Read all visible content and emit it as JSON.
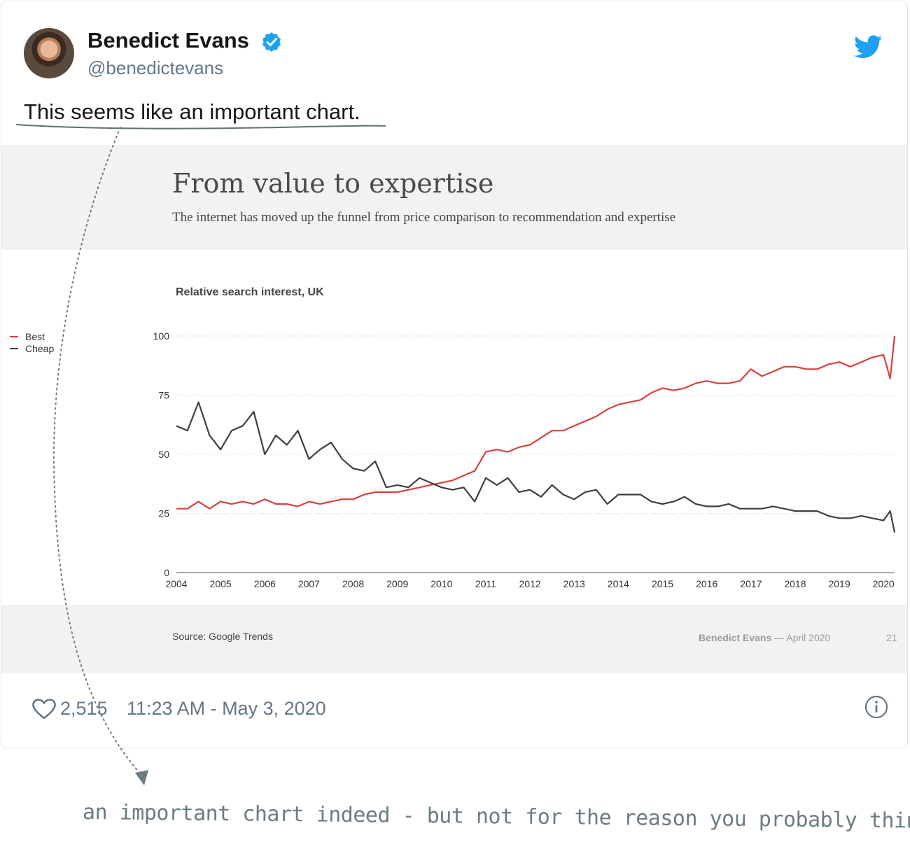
{
  "tweet": {
    "author_name": "Benedict Evans",
    "handle": "@benedictevans",
    "text": "This seems like an important chart.",
    "likes": "2,515",
    "timestamp": "11:23 AM - May 3, 2020",
    "icons": [
      "verified-icon",
      "twitter-bird-icon",
      "heart-icon",
      "info-icon"
    ],
    "colors": {
      "verified": "#1da1f2",
      "bird": "#1da1f2"
    }
  },
  "slide": {
    "title": "From value to expertise",
    "subtitle": "The internet has moved up the funnel from price comparison to recommendation and expertise",
    "source": "Source: Google Trends",
    "brand": "Benedict Evans",
    "separator": "—",
    "date": "April 2020",
    "page": "21"
  },
  "chart_data": {
    "type": "line",
    "title": "Relative search interest, UK",
    "xlabel": "",
    "ylabel": "",
    "x_ticks": [
      "2004",
      "2005",
      "2006",
      "2007",
      "2008",
      "2009",
      "2010",
      "2011",
      "2012",
      "2013",
      "2014",
      "2015",
      "2016",
      "2017",
      "2018",
      "2019",
      "2020"
    ],
    "y_ticks": [
      "0",
      "25",
      "50",
      "75",
      "100"
    ],
    "xlim": [
      2004,
      2020.25
    ],
    "ylim": [
      0,
      100
    ],
    "grid": "horizontal-dotted",
    "legend_position": "left",
    "series": [
      {
        "name": "Best",
        "color": "#d9413a",
        "points": [
          [
            2004.0,
            27
          ],
          [
            2004.25,
            27
          ],
          [
            2004.5,
            30
          ],
          [
            2004.75,
            27
          ],
          [
            2005.0,
            30
          ],
          [
            2005.25,
            29
          ],
          [
            2005.5,
            30
          ],
          [
            2005.75,
            29
          ],
          [
            2006.0,
            31
          ],
          [
            2006.25,
            29
          ],
          [
            2006.5,
            29
          ],
          [
            2006.75,
            28
          ],
          [
            2007.0,
            30
          ],
          [
            2007.25,
            29
          ],
          [
            2007.5,
            30
          ],
          [
            2007.75,
            31
          ],
          [
            2008.0,
            31
          ],
          [
            2008.25,
            33
          ],
          [
            2008.5,
            34
          ],
          [
            2008.75,
            34
          ],
          [
            2009.0,
            34
          ],
          [
            2009.25,
            35
          ],
          [
            2009.5,
            36
          ],
          [
            2009.75,
            37
          ],
          [
            2010.0,
            38
          ],
          [
            2010.25,
            39
          ],
          [
            2010.5,
            41
          ],
          [
            2010.75,
            43
          ],
          [
            2011.0,
            51
          ],
          [
            2011.25,
            52
          ],
          [
            2011.5,
            51
          ],
          [
            2011.75,
            53
          ],
          [
            2012.0,
            54
          ],
          [
            2012.25,
            57
          ],
          [
            2012.5,
            60
          ],
          [
            2012.75,
            60
          ],
          [
            2013.0,
            62
          ],
          [
            2013.25,
            64
          ],
          [
            2013.5,
            66
          ],
          [
            2013.75,
            69
          ],
          [
            2014.0,
            71
          ],
          [
            2014.25,
            72
          ],
          [
            2014.5,
            73
          ],
          [
            2014.75,
            76
          ],
          [
            2015.0,
            78
          ],
          [
            2015.25,
            77
          ],
          [
            2015.5,
            78
          ],
          [
            2015.75,
            80
          ],
          [
            2016.0,
            81
          ],
          [
            2016.25,
            80
          ],
          [
            2016.5,
            80
          ],
          [
            2016.75,
            81
          ],
          [
            2017.0,
            86
          ],
          [
            2017.25,
            83
          ],
          [
            2017.5,
            85
          ],
          [
            2017.75,
            87
          ],
          [
            2018.0,
            87
          ],
          [
            2018.25,
            86
          ],
          [
            2018.5,
            86
          ],
          [
            2018.75,
            88
          ],
          [
            2019.0,
            89
          ],
          [
            2019.25,
            87
          ],
          [
            2019.5,
            89
          ],
          [
            2019.75,
            91
          ],
          [
            2020.0,
            92
          ],
          [
            2020.15,
            82
          ],
          [
            2020.25,
            100
          ]
        ]
      },
      {
        "name": "Cheap",
        "color": "#3f3f3f",
        "points": [
          [
            2004.0,
            62
          ],
          [
            2004.25,
            60
          ],
          [
            2004.5,
            72
          ],
          [
            2004.75,
            58
          ],
          [
            2005.0,
            52
          ],
          [
            2005.25,
            60
          ],
          [
            2005.5,
            62
          ],
          [
            2005.75,
            68
          ],
          [
            2006.0,
            50
          ],
          [
            2006.25,
            58
          ],
          [
            2006.5,
            54
          ],
          [
            2006.75,
            60
          ],
          [
            2007.0,
            48
          ],
          [
            2007.25,
            52
          ],
          [
            2007.5,
            55
          ],
          [
            2007.75,
            48
          ],
          [
            2008.0,
            44
          ],
          [
            2008.25,
            43
          ],
          [
            2008.5,
            47
          ],
          [
            2008.75,
            36
          ],
          [
            2009.0,
            37
          ],
          [
            2009.25,
            36
          ],
          [
            2009.5,
            40
          ],
          [
            2009.75,
            38
          ],
          [
            2010.0,
            36
          ],
          [
            2010.25,
            35
          ],
          [
            2010.5,
            36
          ],
          [
            2010.75,
            30
          ],
          [
            2011.0,
            40
          ],
          [
            2011.25,
            37
          ],
          [
            2011.5,
            40
          ],
          [
            2011.75,
            34
          ],
          [
            2012.0,
            35
          ],
          [
            2012.25,
            32
          ],
          [
            2012.5,
            37
          ],
          [
            2012.75,
            33
          ],
          [
            2013.0,
            31
          ],
          [
            2013.25,
            34
          ],
          [
            2013.5,
            35
          ],
          [
            2013.75,
            29
          ],
          [
            2014.0,
            33
          ],
          [
            2014.25,
            33
          ],
          [
            2014.5,
            33
          ],
          [
            2014.75,
            30
          ],
          [
            2015.0,
            29
          ],
          [
            2015.25,
            30
          ],
          [
            2015.5,
            32
          ],
          [
            2015.75,
            29
          ],
          [
            2016.0,
            28
          ],
          [
            2016.25,
            28
          ],
          [
            2016.5,
            29
          ],
          [
            2016.75,
            27
          ],
          [
            2017.0,
            27
          ],
          [
            2017.25,
            27
          ],
          [
            2017.5,
            28
          ],
          [
            2017.75,
            27
          ],
          [
            2018.0,
            26
          ],
          [
            2018.25,
            26
          ],
          [
            2018.5,
            26
          ],
          [
            2018.75,
            24
          ],
          [
            2019.0,
            23
          ],
          [
            2019.25,
            23
          ],
          [
            2019.5,
            24
          ],
          [
            2019.75,
            23
          ],
          [
            2020.0,
            22
          ],
          [
            2020.15,
            26
          ],
          [
            2020.25,
            17
          ]
        ]
      }
    ]
  },
  "annotation": {
    "text": "an important chart indeed - but not for the reason you probably think",
    "color": "#6d7c82"
  }
}
